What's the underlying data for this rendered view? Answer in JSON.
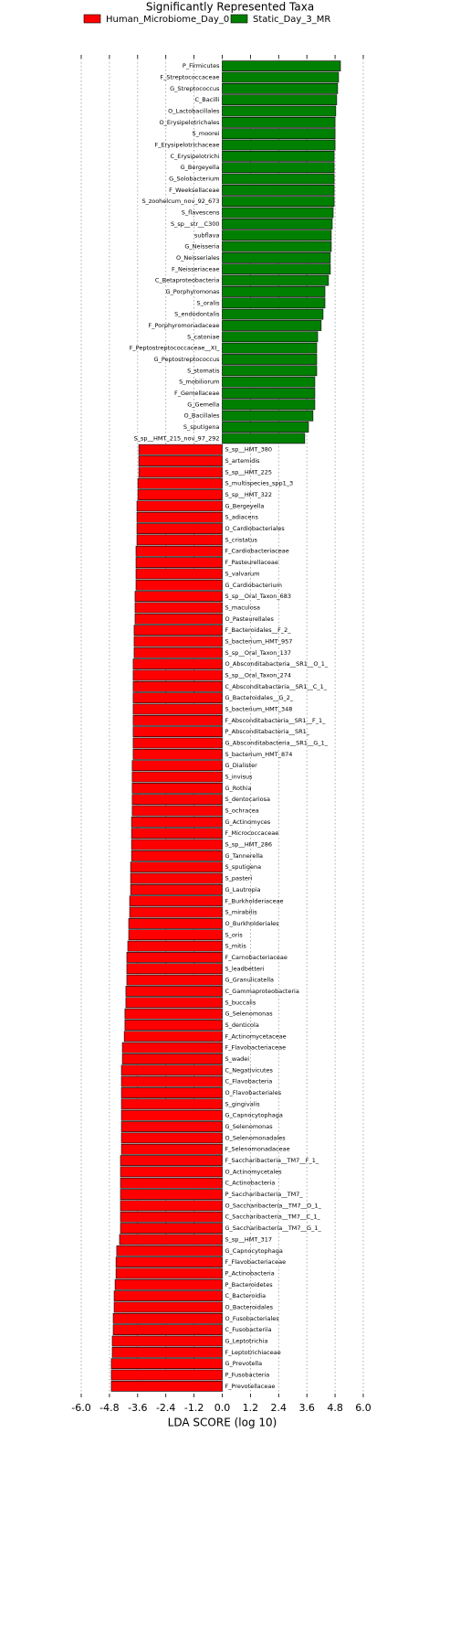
{
  "chart_data": {
    "type": "bar",
    "orientation": "horizontal",
    "title": "Significantly Represented Taxa",
    "x_label": "LDA SCORE (log 10)",
    "xlim": [
      -6,
      6
    ],
    "xticks": [
      {
        "value": -6,
        "label": "-6.0"
      },
      {
        "value": -4.8,
        "label": "-4.8"
      },
      {
        "value": -3.6,
        "label": "-3.6"
      },
      {
        "value": -2.4,
        "label": "-2.4"
      },
      {
        "value": -1.2,
        "label": "-1.2"
      },
      {
        "value": 0,
        "label": "0.0"
      },
      {
        "value": 1.2,
        "label": "1.2"
      },
      {
        "value": 2.4,
        "label": "2.4"
      },
      {
        "value": 3.6,
        "label": "3.6"
      },
      {
        "value": 4.8,
        "label": "4.8"
      },
      {
        "value": 6,
        "label": "6.0"
      }
    ],
    "grid": true,
    "legend": "top",
    "series": [
      {
        "name": "Human_Microbiome_Day_0",
        "color": "#ff0000",
        "categories": [
          "S_sp__HMT_380",
          "S_artemidis",
          "S_sp__HMT_225",
          "S_multispecies_spp1_3",
          "S_sp__HMT_322",
          "G_Bergeyella",
          "S_adiacens",
          "O_Cardiobacteriales",
          "S_cristatus",
          "F_Cardiobacteriaceae",
          "F_Pasteurellaceae",
          "S_valvarum",
          "G_Cardiobacterium",
          "S_sp__Oral_Taxon_683",
          "S_maculosa",
          "O_Pasteurellales",
          "F_Bacteroidales__F_2_",
          "S_bacterium_HMT_957",
          "S_sp__Oral_Taxon_137",
          "O_Absconditabacteria__SR1__O_1_",
          "S_sp__Oral_Taxon_274",
          "C_Absconditabacteria__SR1__C_1_",
          "G_Bacteroidales__G_2_",
          "S_bacterium_HMT_348",
          "F_Absconditabacteria__SR1__F_1_",
          "P_Absconditabacteria__SR1_",
          "G_Absconditabacteria__SR1__G_1_",
          "S_bacterium_HMT_874",
          "G_Dialister",
          "S_invisus",
          "G_Rothia",
          "S_dentocariosa",
          "S_ochracea",
          "G_Actinomyces",
          "F_Micrococcaceae",
          "S_sp__HMT_286",
          "G_Tannerella",
          "S_sputigena",
          "S_pasteri",
          "G_Lautropia",
          "F_Burkholderiaceae",
          "S_mirabilis",
          "O_Burkholderiales",
          "S_oris",
          "S_mitis",
          "F_Carnobacteriaceae",
          "S_leadbetteri",
          "G_Granulicatella",
          "C_Gammaproteobacteria",
          "S_buccalis",
          "G_Selenomonas",
          "S_denticola",
          "F_Actinomycetaceae",
          "F_Flavobacteriaceae",
          "S_wadei",
          "C_Negativicutes",
          "C_Flavobacteria",
          "O_Flavobacteriales",
          "S_gingivalis",
          "G_Capnocytophaga",
          "G_Selenomonas",
          "O_Selenomonadales",
          "F_Selenomonadaceae",
          "F_Saccharibacteria__TM7__F_1_",
          "O_Actinomycetales",
          "C_Actinobacteria",
          "P_Saccharibacteria__TM7_",
          "O_Saccharibacteria__TM7__O_1_",
          "C_Saccharibacteria__TM7__C_1_",
          "G_Saccharibacteria__TM7__G_1_",
          "S_sp__HMT_317",
          "G_Capnocytophaga",
          "F_Flavobacteriaceae",
          "P_Actinobacteria",
          "P_Bacteroidetes",
          "C_Bacteroidia",
          "O_Bacteroidales",
          "O_Fusobacteriales",
          "C_Fusobacteriia",
          "G_Leptotrichia",
          "F_Leptotrichiaceae",
          "G_Prevotella",
          "P_Fusobacteria",
          "F_Prevotellaceae"
        ],
        "values": [
          -3.55,
          -3.55,
          -3.55,
          -3.59,
          -3.59,
          -3.63,
          -3.63,
          -3.63,
          -3.63,
          -3.67,
          -3.67,
          -3.67,
          -3.67,
          -3.71,
          -3.71,
          -3.71,
          -3.75,
          -3.75,
          -3.75,
          -3.79,
          -3.79,
          -3.79,
          -3.79,
          -3.79,
          -3.79,
          -3.79,
          -3.79,
          -3.79,
          -3.83,
          -3.83,
          -3.83,
          -3.83,
          -3.83,
          -3.86,
          -3.86,
          -3.86,
          -3.86,
          -3.9,
          -3.9,
          -3.9,
          -3.94,
          -3.94,
          -3.98,
          -3.98,
          -4.02,
          -4.06,
          -4.06,
          -4.06,
          -4.1,
          -4.1,
          -4.14,
          -4.14,
          -4.17,
          -4.25,
          -4.25,
          -4.29,
          -4.29,
          -4.29,
          -4.29,
          -4.29,
          -4.29,
          -4.29,
          -4.29,
          -4.33,
          -4.33,
          -4.33,
          -4.33,
          -4.33,
          -4.33,
          -4.33,
          -4.37,
          -4.49,
          -4.52,
          -4.52,
          -4.56,
          -4.6,
          -4.6,
          -4.64,
          -4.64,
          -4.68,
          -4.68,
          -4.72,
          -4.72,
          -4.72
        ]
      },
      {
        "name": "Static_Day_3_MR",
        "color": "#008000",
        "categories": [
          "P_Firmicutes",
          "F_Streptococcaceae",
          "G_Streptococcus",
          "C_Bacilli",
          "O_Lactobacillales",
          "O_Erysipelotrichales",
          "S_moorei",
          "F_Erysipelotrichaceae",
          "C_Erysipelotrichi",
          "G_Bergeyella",
          "G_Solobacterium",
          "F_Weeksellaceae",
          "S_zoohelcum_nov_92_673",
          "S_flavescens",
          "S_sp__str__C300",
          "subflava",
          "G_Neisseria",
          "O_Neisseriales",
          "F_Neisseriaceae",
          "C_Betaproteobacteria",
          "G_Porphyromonas",
          "S_oralis",
          "S_endodontalis",
          "F_Porphyromonadaceae",
          "S_catoniae",
          "F_Peptostreptococcaceae__XI_",
          "G_Peptostreptococcus",
          "S_stomatis",
          "S_mobiliorum",
          "F_Gemellaceae",
          "G_Gemella",
          "O_Bacillales",
          "S_sputigena",
          "S_sp__HMT_215_nov_97_292"
        ],
        "values": [
          5.03,
          4.95,
          4.91,
          4.87,
          4.83,
          4.8,
          4.8,
          4.8,
          4.76,
          4.76,
          4.76,
          4.76,
          4.76,
          4.72,
          4.68,
          4.64,
          4.64,
          4.6,
          4.6,
          4.52,
          4.37,
          4.37,
          4.29,
          4.21,
          4.06,
          4.02,
          4.02,
          4.02,
          3.94,
          3.94,
          3.94,
          3.86,
          3.67,
          3.51
        ]
      }
    ]
  }
}
